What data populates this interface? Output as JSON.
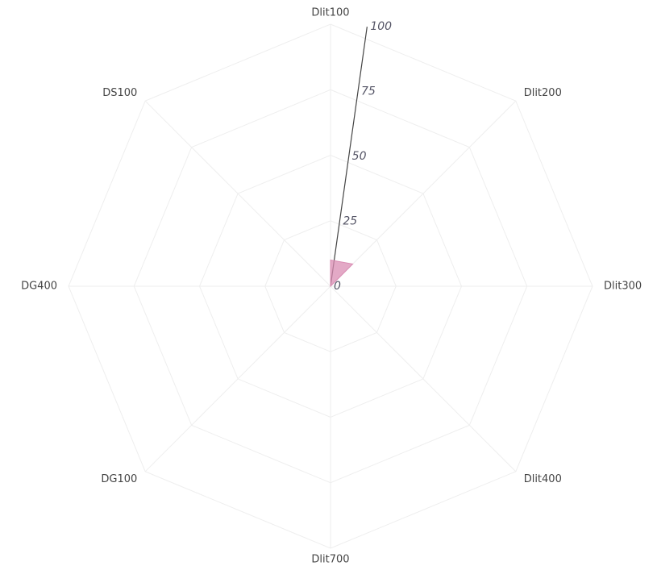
{
  "chart_data": {
    "type": "radar",
    "categories": [
      "Dlit100",
      "Dlit200",
      "Dlit300",
      "Dlit400",
      "Dlit700",
      "DG100",
      "DG400",
      "DS100"
    ],
    "series": [
      {
        "color": "#d98cb3",
        "values": [
          10,
          12,
          0,
          0,
          0,
          0,
          0,
          0
        ]
      }
    ],
    "ylim": [
      0,
      100
    ],
    "yticks": [
      0,
      25,
      50,
      75,
      100
    ],
    "grid": true
  }
}
